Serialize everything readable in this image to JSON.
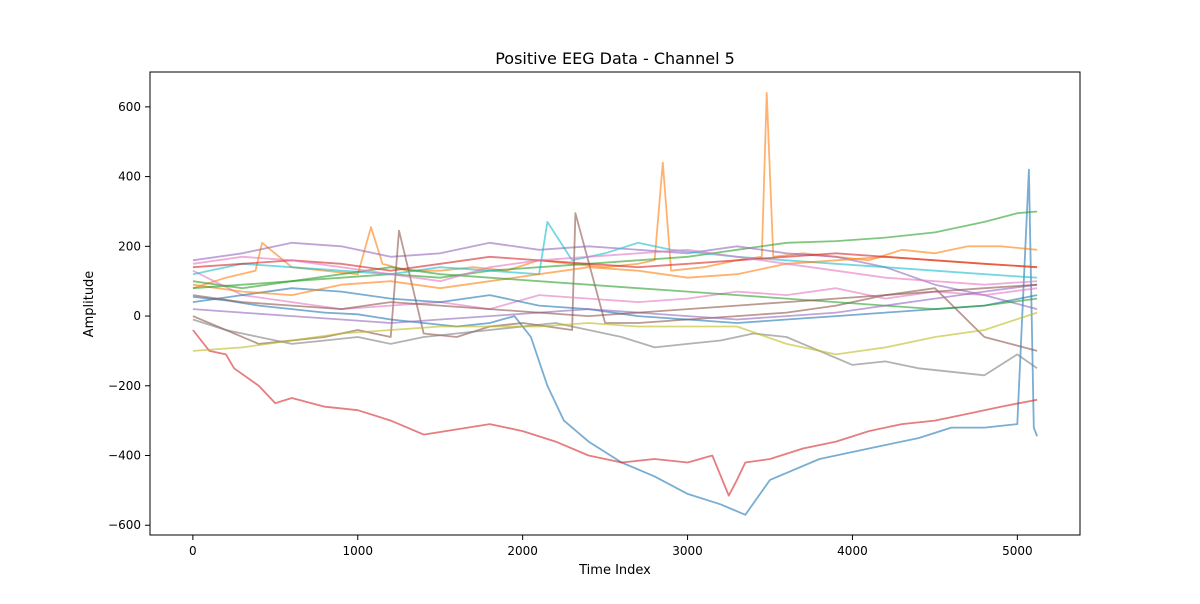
{
  "chart_data": {
    "type": "line",
    "title": "Positive EEG Data - Channel 5",
    "xlabel": "Time Index",
    "ylabel": "Amplitude",
    "xlim": [
      -260,
      5380
    ],
    "ylim": [
      -628,
      700
    ],
    "xticks": [
      0,
      1000,
      2000,
      3000,
      4000,
      5000
    ],
    "yticks": [
      -600,
      -400,
      -200,
      0,
      200,
      400,
      600
    ],
    "xtick_labels": [
      "0",
      "1000",
      "2000",
      "3000",
      "4000",
      "5000"
    ],
    "ytick_labels": [
      "−600",
      "−400",
      "−200",
      "0",
      "200",
      "400",
      "600"
    ],
    "grid": false,
    "legend": false,
    "series": [
      {
        "color": "#1f77b4",
        "x": [
          0,
          200,
          400,
          600,
          800,
          1000,
          1200,
          1400,
          1600,
          1800,
          1950,
          2050,
          2150,
          2250,
          2400,
          2600,
          2800,
          3000,
          3200,
          3350,
          3500,
          3600,
          3800,
          4000,
          4200,
          4400,
          4600,
          4800,
          5000,
          5070,
          5100,
          5120
        ],
        "y": [
          55,
          45,
          30,
          20,
          10,
          5,
          -10,
          -20,
          -30,
          -20,
          0,
          -60,
          -200,
          -300,
          -360,
          -420,
          -460,
          -510,
          -540,
          -570,
          -470,
          -450,
          -410,
          -390,
          -370,
          -350,
          -320,
          -320,
          -310,
          420,
          -320,
          -345
        ]
      },
      {
        "color": "#ff7f0e",
        "x": [
          0,
          200,
          380,
          420,
          600,
          800,
          1000,
          1080,
          1150,
          1300,
          1500,
          1700,
          1900,
          2100,
          2300,
          2500,
          2700,
          2800,
          2850,
          2900,
          3100,
          3300,
          3450,
          3480,
          3520,
          3700,
          3900,
          4100,
          4300,
          4500,
          4700,
          4900,
          5120
        ],
        "y": [
          80,
          110,
          130,
          210,
          140,
          130,
          120,
          255,
          150,
          130,
          130,
          140,
          130,
          160,
          150,
          140,
          150,
          160,
          440,
          130,
          140,
          160,
          170,
          640,
          170,
          180,
          170,
          160,
          190,
          180,
          200,
          200,
          190
        ]
      },
      {
        "color": "#2ca02c",
        "x": [
          0,
          300,
          600,
          900,
          1200,
          1500,
          1800,
          2100,
          2400,
          2700,
          3000,
          3300,
          3600,
          3900,
          4200,
          4500,
          4800,
          5000,
          5120
        ],
        "y": [
          100,
          80,
          100,
          110,
          120,
          110,
          130,
          140,
          150,
          160,
          170,
          190,
          210,
          215,
          225,
          240,
          270,
          295,
          300
        ]
      },
      {
        "color": "#d62728",
        "x": [
          0,
          100,
          200,
          250,
          400,
          500,
          600,
          800,
          1000,
          1200,
          1400,
          1600,
          1800,
          2000,
          2200,
          2400,
          2600,
          2800,
          3000,
          3150,
          3250,
          3300,
          3350,
          3500,
          3700,
          3900,
          4100,
          4300,
          4500,
          4700,
          4900,
          5120
        ],
        "y": [
          -40,
          -100,
          -110,
          -150,
          -200,
          -250,
          -235,
          -260,
          -270,
          -300,
          -340,
          -325,
          -310,
          -330,
          -360,
          -400,
          -420,
          -410,
          -420,
          -400,
          -515,
          -470,
          -420,
          -410,
          -380,
          -360,
          -330,
          -310,
          -300,
          -280,
          -260,
          -240
        ]
      },
      {
        "color": "#9467bd",
        "x": [
          0,
          300,
          600,
          900,
          1200,
          1500,
          1800,
          2100,
          2400,
          2700,
          3000,
          3300,
          3600,
          3900,
          4200,
          4500,
          4800,
          5120
        ],
        "y": [
          160,
          180,
          210,
          200,
          170,
          180,
          210,
          190,
          200,
          190,
          180,
          200,
          180,
          170,
          140,
          90,
          60,
          20
        ]
      },
      {
        "color": "#8c564b",
        "x": [
          0,
          200,
          400,
          600,
          800,
          1000,
          1200,
          1250,
          1400,
          1600,
          1800,
          2000,
          2300,
          2320,
          2500,
          2700,
          3000,
          3300,
          3600,
          3900,
          4200,
          4500,
          4800,
          5120
        ],
        "y": [
          0,
          -40,
          -80,
          -70,
          -60,
          -40,
          -60,
          245,
          -50,
          -60,
          -30,
          -20,
          -40,
          295,
          -20,
          -20,
          -10,
          0,
          10,
          30,
          60,
          80,
          -60,
          -100
        ]
      },
      {
        "color": "#e377c2",
        "x": [
          0,
          300,
          600,
          900,
          1200,
          1500,
          1800,
          2100,
          2400,
          2700,
          3000,
          3300,
          3600,
          3900,
          4200,
          4500,
          4800,
          5120
        ],
        "y": [
          130,
          60,
          40,
          20,
          30,
          40,
          20,
          60,
          50,
          40,
          50,
          70,
          60,
          80,
          50,
          70,
          60,
          80
        ]
      },
      {
        "color": "#7f7f7f",
        "x": [
          0,
          200,
          400,
          600,
          800,
          1000,
          1200,
          1400,
          1600,
          1800,
          2000,
          2200,
          2400,
          2600,
          2800,
          3000,
          3200,
          3400,
          3600,
          3800,
          4000,
          4200,
          4400,
          4600,
          4800,
          5000,
          5120
        ],
        "y": [
          -10,
          -40,
          -60,
          -80,
          -70,
          -60,
          -80,
          -60,
          -50,
          -40,
          -30,
          -20,
          -40,
          -60,
          -90,
          -80,
          -70,
          -50,
          -60,
          -100,
          -140,
          -130,
          -150,
          -160,
          -170,
          -110,
          -150
        ]
      },
      {
        "color": "#bcbd22",
        "x": [
          0,
          300,
          600,
          900,
          1200,
          1500,
          1800,
          2100,
          2400,
          2700,
          3000,
          3300,
          3600,
          3900,
          4200,
          4500,
          4800,
          5120
        ],
        "y": [
          -100,
          -90,
          -70,
          -50,
          -40,
          -30,
          -30,
          -30,
          -20,
          -30,
          -30,
          -30,
          -80,
          -110,
          -90,
          -60,
          -40,
          10
        ]
      },
      {
        "color": "#17becf",
        "x": [
          0,
          300,
          600,
          900,
          1200,
          1500,
          1800,
          2100,
          2150,
          2300,
          2500,
          2700,
          2900,
          3100,
          3300,
          3600,
          3900,
          4200,
          4500,
          4800,
          5120
        ],
        "y": [
          120,
          150,
          140,
          130,
          120,
          140,
          130,
          120,
          270,
          160,
          180,
          210,
          190,
          180,
          170,
          160,
          150,
          140,
          130,
          120,
          110
        ]
      },
      {
        "color": "#1f77b4",
        "x": [
          0,
          300,
          600,
          900,
          1200,
          1500,
          1800,
          2100,
          2400,
          2700,
          3000,
          3300,
          3600,
          3900,
          4200,
          4500,
          4800,
          5120
        ],
        "y": [
          40,
          60,
          80,
          70,
          50,
          40,
          60,
          30,
          20,
          0,
          -10,
          -20,
          -10,
          0,
          10,
          20,
          30,
          60
        ]
      },
      {
        "color": "#ff7f0e",
        "x": [
          0,
          300,
          600,
          900,
          1200,
          1500,
          1800,
          2100,
          2400,
          2700,
          3000,
          3300,
          3600,
          3900,
          4200,
          4500,
          4800,
          5120
        ],
        "y": [
          90,
          70,
          60,
          90,
          100,
          80,
          100,
          120,
          140,
          130,
          110,
          120,
          150,
          160,
          170,
          160,
          150,
          140
        ]
      },
      {
        "color": "#2ca02c",
        "x": [
          0,
          300,
          600,
          900,
          1200,
          1500,
          1800,
          2100,
          2400,
          2700,
          3000,
          3300,
          3600,
          3900,
          4200,
          4500,
          4800,
          5120
        ],
        "y": [
          80,
          90,
          100,
          120,
          140,
          120,
          110,
          100,
          90,
          80,
          70,
          60,
          50,
          40,
          30,
          20,
          30,
          50
        ]
      },
      {
        "color": "#d62728",
        "x": [
          0,
          300,
          600,
          900,
          1200,
          1500,
          1800,
          2100,
          2400,
          2700,
          3000,
          3300,
          3600,
          3900,
          4200,
          4500,
          4800,
          5120
        ],
        "y": [
          140,
          150,
          160,
          150,
          130,
          150,
          170,
          160,
          150,
          140,
          150,
          160,
          170,
          180,
          170,
          160,
          150,
          140
        ]
      },
      {
        "color": "#9467bd",
        "x": [
          0,
          300,
          600,
          900,
          1200,
          1500,
          1800,
          2100,
          2400,
          2700,
          3000,
          3300,
          3600,
          3900,
          4200,
          4500,
          4800,
          5120
        ],
        "y": [
          20,
          10,
          0,
          -10,
          -20,
          -10,
          0,
          10,
          20,
          10,
          0,
          -10,
          0,
          10,
          30,
          50,
          70,
          90
        ]
      },
      {
        "color": "#8c564b",
        "x": [
          0,
          300,
          600,
          900,
          1200,
          1500,
          1800,
          2100,
          2400,
          2700,
          3000,
          3300,
          3600,
          3900,
          4200,
          4500,
          4800,
          5120
        ],
        "y": [
          60,
          40,
          30,
          20,
          40,
          30,
          20,
          10,
          0,
          10,
          20,
          30,
          40,
          50,
          60,
          70,
          80,
          90
        ]
      },
      {
        "color": "#e377c2",
        "x": [
          0,
          300,
          600,
          900,
          1200,
          1500,
          1800,
          2100,
          2400,
          2700,
          3000,
          3300,
          3600,
          3900,
          4200,
          4500,
          4800,
          5120
        ],
        "y": [
          150,
          170,
          160,
          140,
          120,
          100,
          140,
          160,
          170,
          180,
          190,
          170,
          150,
          130,
          110,
          100,
          90,
          100
        ]
      }
    ]
  }
}
